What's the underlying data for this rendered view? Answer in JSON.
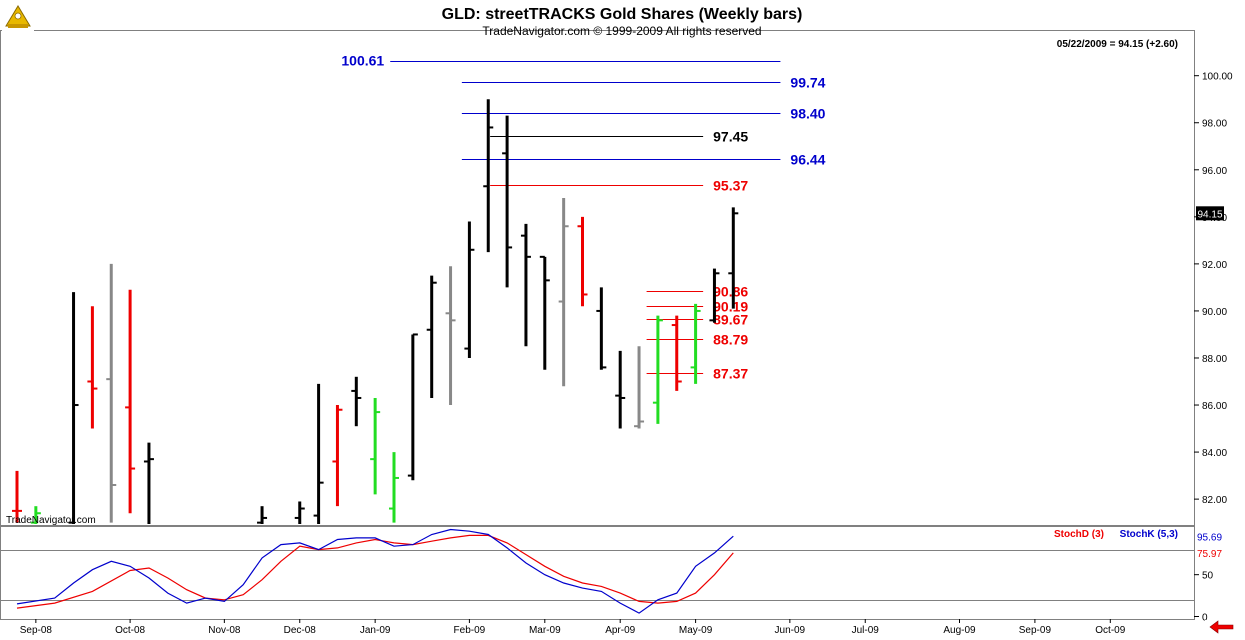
{
  "header": {
    "title": "GLD:  streetTRACKS Gold Shares  (Weekly bars)",
    "subtitle": "TradeNavigator.com © 1999-2009 All rights reserved",
    "last_quote": "05/22/2009 = 94.15 (+2.60)",
    "watermark": "TradeNavigator.com"
  },
  "colors": {
    "up": "#000000",
    "down": "#ee0000",
    "gray": "#888888",
    "green": "#22dd22",
    "blue_level": "#0000cc",
    "red_level": "#ee0000",
    "black_level": "#000000",
    "stochD": "#ee0000",
    "stochK": "#0000cc"
  },
  "chart_data": {
    "type": "ohlc",
    "price_axis": {
      "ylim": [
        80.9,
        101.9
      ],
      "ticks": [
        82,
        84,
        86,
        88,
        90,
        92,
        94,
        96,
        98,
        100
      ],
      "tick_labels": [
        "82.00",
        "84.00",
        "86.00",
        "88.00",
        "90.00",
        "92.00",
        "94.00",
        "96.00",
        "98.00",
        "100.00"
      ],
      "last_price_label": "94.15"
    },
    "x_labels": [
      {
        "week": 1,
        "label": "Sep-08"
      },
      {
        "week": 6,
        "label": "Oct-08"
      },
      {
        "week": 11,
        "label": "Nov-08"
      },
      {
        "week": 15,
        "label": "Dec-08"
      },
      {
        "week": 19,
        "label": "Jan-09"
      },
      {
        "week": 24,
        "label": "Feb-09"
      },
      {
        "week": 28,
        "label": "Mar-09"
      },
      {
        "week": 32,
        "label": "Apr-09"
      },
      {
        "week": 36,
        "label": "May-09"
      },
      {
        "week": 41,
        "label": "Jun-09"
      },
      {
        "week": 45,
        "label": "Jul-09"
      },
      {
        "week": 50,
        "label": "Aug-09"
      },
      {
        "week": 54,
        "label": "Sep-09"
      },
      {
        "week": 58,
        "label": "Oct-09"
      }
    ],
    "bars": [
      {
        "w": 0,
        "o": 81.5,
        "h": 83.2,
        "l": 81.0,
        "c": 81.5,
        "color": "red"
      },
      {
        "w": 1,
        "o": 81.0,
        "h": 81.7,
        "l": 80.9,
        "c": 81.4,
        "color": "green"
      },
      {
        "w": 3,
        "o": 81.0,
        "h": 90.8,
        "l": 80.9,
        "c": 86.0,
        "color": "black"
      },
      {
        "w": 4,
        "o": 87.0,
        "h": 90.2,
        "l": 85.0,
        "c": 86.7,
        "color": "red"
      },
      {
        "w": 5,
        "o": 87.1,
        "h": 92.0,
        "l": 81.0,
        "c": 82.6,
        "color": "gray"
      },
      {
        "w": 6,
        "o": 85.9,
        "h": 90.9,
        "l": 81.4,
        "c": 83.3,
        "color": "red"
      },
      {
        "w": 7,
        "o": 83.6,
        "h": 84.4,
        "l": 80.9,
        "c": 83.7,
        "color": "black"
      },
      {
        "w": 13,
        "o": 81.0,
        "h": 81.7,
        "l": 80.9,
        "c": 81.2,
        "color": "black"
      },
      {
        "w": 15,
        "o": 81.2,
        "h": 81.9,
        "l": 80.9,
        "c": 81.6,
        "color": "black"
      },
      {
        "w": 16,
        "o": 81.3,
        "h": 86.9,
        "l": 80.9,
        "c": 82.7,
        "color": "black"
      },
      {
        "w": 17,
        "o": 83.6,
        "h": 86.0,
        "l": 81.7,
        "c": 85.8,
        "color": "red"
      },
      {
        "w": 18,
        "o": 86.6,
        "h": 87.2,
        "l": 85.1,
        "c": 86.3,
        "color": "black"
      },
      {
        "w": 19,
        "o": 83.7,
        "h": 86.3,
        "l": 82.2,
        "c": 85.7,
        "color": "green"
      },
      {
        "w": 20,
        "o": 81.6,
        "h": 84.0,
        "l": 81.0,
        "c": 82.9,
        "color": "green"
      },
      {
        "w": 21,
        "o": 83.0,
        "h": 89.0,
        "l": 82.8,
        "c": 89.0,
        "color": "black"
      },
      {
        "w": 22,
        "o": 89.2,
        "h": 91.5,
        "l": 86.3,
        "c": 91.2,
        "color": "black"
      },
      {
        "w": 23,
        "o": 89.9,
        "h": 91.9,
        "l": 86.0,
        "c": 89.6,
        "color": "gray"
      },
      {
        "w": 24,
        "o": 88.4,
        "h": 93.8,
        "l": 88.0,
        "c": 92.6,
        "color": "black"
      },
      {
        "w": 25,
        "o": 95.3,
        "h": 99.0,
        "l": 92.5,
        "c": 97.8,
        "color": "black"
      },
      {
        "w": 26,
        "o": 96.7,
        "h": 98.3,
        "l": 91.0,
        "c": 92.7,
        "color": "black"
      },
      {
        "w": 27,
        "o": 93.2,
        "h": 93.7,
        "l": 88.5,
        "c": 92.3,
        "color": "black"
      },
      {
        "w": 28,
        "o": 92.3,
        "h": 92.3,
        "l": 87.5,
        "c": 91.3,
        "color": "black"
      },
      {
        "w": 29,
        "o": 90.4,
        "h": 94.8,
        "l": 86.8,
        "c": 93.6,
        "color": "gray"
      },
      {
        "w": 30,
        "o": 93.6,
        "h": 94.0,
        "l": 90.2,
        "c": 90.7,
        "color": "red"
      },
      {
        "w": 31,
        "o": 90.0,
        "h": 91.0,
        "l": 87.5,
        "c": 87.6,
        "color": "black"
      },
      {
        "w": 32,
        "o": 86.4,
        "h": 88.3,
        "l": 85.0,
        "c": 86.3,
        "color": "black"
      },
      {
        "w": 33,
        "o": 85.1,
        "h": 88.5,
        "l": 85.0,
        "c": 85.3,
        "color": "gray"
      },
      {
        "w": 34,
        "o": 86.1,
        "h": 89.8,
        "l": 85.2,
        "c": 89.6,
        "color": "green"
      },
      {
        "w": 35,
        "o": 89.4,
        "h": 89.8,
        "l": 86.6,
        "c": 87.0,
        "color": "red"
      },
      {
        "w": 36,
        "o": 87.6,
        "h": 90.3,
        "l": 86.9,
        "c": 90.0,
        "color": "green"
      },
      {
        "w": 37,
        "o": 89.6,
        "h": 91.8,
        "l": 89.5,
        "c": 91.6,
        "color": "black"
      },
      {
        "w": 38,
        "o": 91.6,
        "h": 94.4,
        "l": 90.1,
        "c": 94.15,
        "color": "black"
      }
    ],
    "levels": [
      {
        "value": 100.61,
        "label": "100.61",
        "color": "blue",
        "from": 19.8,
        "to": 40.5,
        "label_side": "left"
      },
      {
        "value": 99.74,
        "label": "99.74",
        "color": "blue",
        "from": 23.6,
        "to": 40.5,
        "label_side": "right"
      },
      {
        "value": 98.4,
        "label": "98.40",
        "color": "blue",
        "from": 23.6,
        "to": 40.5,
        "label_side": "right"
      },
      {
        "value": 97.45,
        "label": "97.45",
        "color": "black",
        "from": 25.1,
        "to": 36.4,
        "label_side": "right"
      },
      {
        "value": 96.44,
        "label": "96.44",
        "color": "blue",
        "from": 23.6,
        "to": 40.5,
        "label_side": "right"
      },
      {
        "value": 95.37,
        "label": "95.37",
        "color": "red",
        "from": 25.1,
        "to": 36.4,
        "label_side": "right"
      },
      {
        "value": 90.86,
        "label": "90.86",
        "color": "red",
        "from": 33.4,
        "to": 36.4,
        "label_side": "right"
      },
      {
        "value": 90.19,
        "label": "90.19",
        "color": "red",
        "from": 33.4,
        "to": 36.4,
        "label_side": "right"
      },
      {
        "value": 89.67,
        "label": "89.67",
        "color": "red",
        "from": 33.4,
        "to": 36.4,
        "label_side": "right"
      },
      {
        "value": 88.79,
        "label": "88.79",
        "color": "red",
        "from": 33.4,
        "to": 36.4,
        "label_side": "right"
      },
      {
        "value": 87.37,
        "label": "87.37",
        "color": "red",
        "from": 33.4,
        "to": 36.4,
        "label_side": "right"
      }
    ],
    "stochastic": {
      "legend_d": "StochD (3)",
      "legend_k": "StochK (5,3)",
      "ylim": [
        -3,
        107
      ],
      "ticks": [
        0,
        50
      ],
      "ref_lines": [
        20,
        80
      ],
      "d_value": 75.97,
      "k_value": 95.69,
      "d_label": "75.97",
      "k_label": "95.69",
      "d": [
        [
          0,
          10
        ],
        [
          2,
          16
        ],
        [
          4,
          30
        ],
        [
          6,
          55
        ],
        [
          7,
          58
        ],
        [
          8,
          46
        ],
        [
          9,
          32
        ],
        [
          10,
          22
        ],
        [
          11,
          20
        ],
        [
          12,
          26
        ],
        [
          13,
          44
        ],
        [
          14,
          66
        ],
        [
          15,
          84
        ],
        [
          16,
          80
        ],
        [
          17,
          82
        ],
        [
          18,
          88
        ],
        [
          19,
          92
        ],
        [
          20,
          88
        ],
        [
          21,
          86
        ],
        [
          22,
          90
        ],
        [
          23,
          94
        ],
        [
          24,
          97
        ],
        [
          25,
          97
        ],
        [
          26,
          88
        ],
        [
          27,
          74
        ],
        [
          28,
          60
        ],
        [
          29,
          48
        ],
        [
          30,
          40
        ],
        [
          31,
          36
        ],
        [
          32,
          28
        ],
        [
          33,
          18
        ],
        [
          34,
          16
        ],
        [
          35,
          18
        ],
        [
          36,
          28
        ],
        [
          37,
          50
        ],
        [
          38,
          76
        ]
      ],
      "k": [
        [
          0,
          15
        ],
        [
          2,
          22
        ],
        [
          3,
          40
        ],
        [
          4,
          56
        ],
        [
          5,
          66
        ],
        [
          6,
          60
        ],
        [
          7,
          46
        ],
        [
          8,
          28
        ],
        [
          9,
          16
        ],
        [
          10,
          22
        ],
        [
          11,
          18
        ],
        [
          12,
          38
        ],
        [
          13,
          70
        ],
        [
          14,
          86
        ],
        [
          15,
          88
        ],
        [
          16,
          80
        ],
        [
          17,
          92
        ],
        [
          18,
          94
        ],
        [
          19,
          94
        ],
        [
          20,
          84
        ],
        [
          21,
          86
        ],
        [
          22,
          98
        ],
        [
          23,
          104
        ],
        [
          24,
          102
        ],
        [
          25,
          98
        ],
        [
          26,
          82
        ],
        [
          27,
          64
        ],
        [
          28,
          50
        ],
        [
          29,
          40
        ],
        [
          30,
          34
        ],
        [
          31,
          30
        ],
        [
          32,
          16
        ],
        [
          33,
          4
        ],
        [
          34,
          20
        ],
        [
          35,
          28
        ],
        [
          36,
          60
        ],
        [
          37,
          76
        ],
        [
          38,
          96
        ]
      ]
    }
  }
}
